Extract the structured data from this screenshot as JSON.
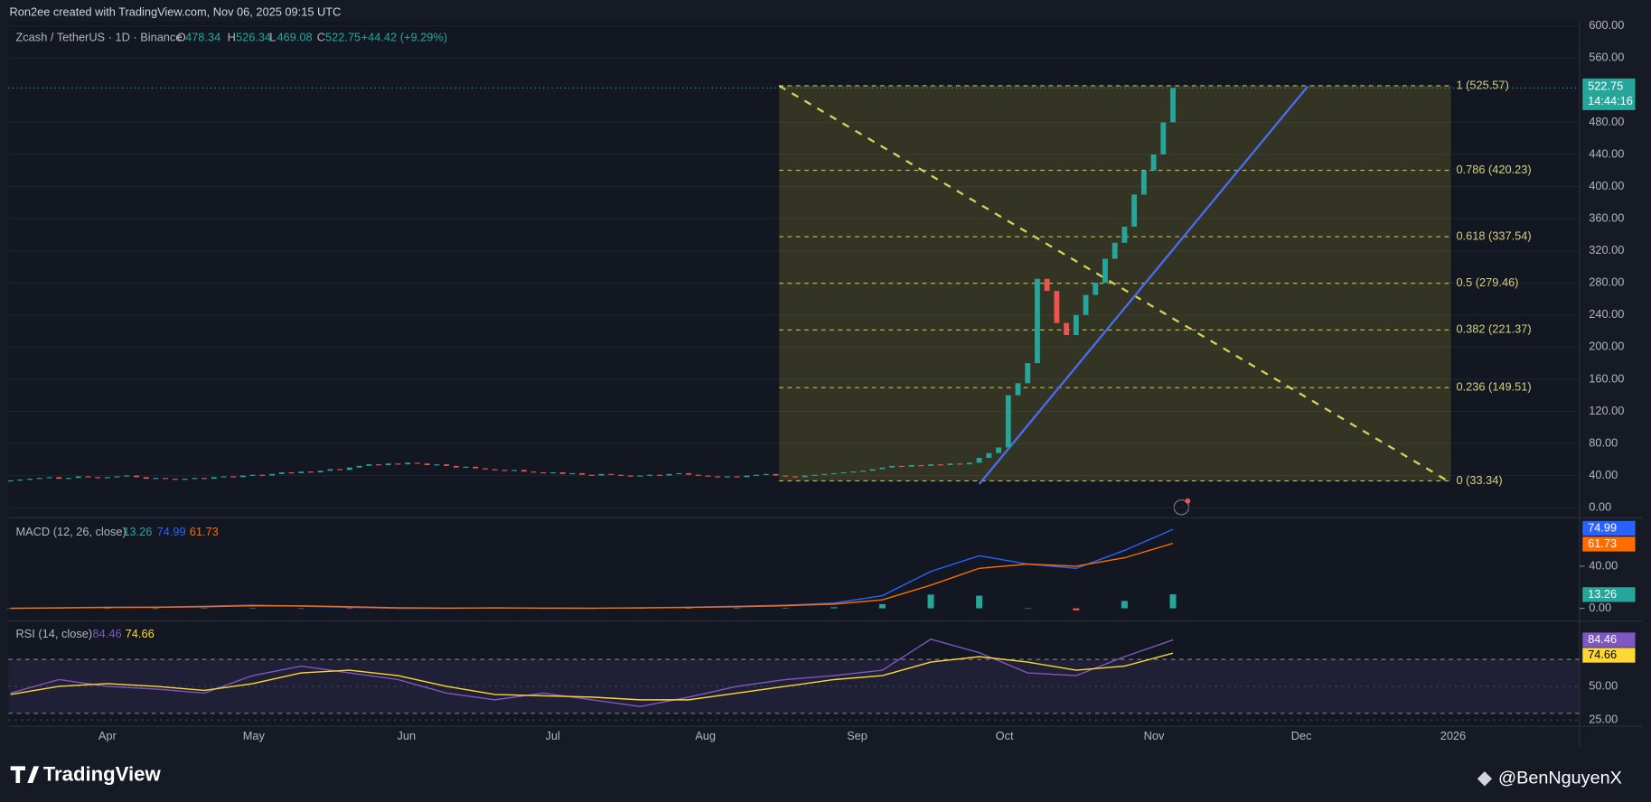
{
  "header": {
    "credit": "Ron2ee created with TradingView.com, Nov 06, 2025 09:15 UTC",
    "symbol": "Zcash / TetherUS · 1D · Binance",
    "open_label": "O",
    "open": 478.34,
    "high_label": "H",
    "high": 526.34,
    "low_label": "L",
    "low": 469.08,
    "close_label": "C",
    "close": 522.75,
    "change": "+44.42 (+9.29%)"
  },
  "price_pane": {
    "ylim": [
      -10,
      610
    ],
    "yticks": [
      {
        "value": 0,
        "label": "0.00"
      },
      {
        "value": 40,
        "label": "40.00"
      },
      {
        "value": 80,
        "label": "80.00"
      },
      {
        "value": 120,
        "label": "120.00"
      },
      {
        "value": 160,
        "label": "160.00"
      },
      {
        "value": 200,
        "label": "200.00"
      },
      {
        "value": 240,
        "label": "240.00"
      },
      {
        "value": 280,
        "label": "280.00"
      },
      {
        "value": 320,
        "label": "320.00"
      },
      {
        "value": 360,
        "label": "360.00"
      },
      {
        "value": 400,
        "label": "400.00"
      },
      {
        "value": 440,
        "label": "440.00"
      },
      {
        "value": 480,
        "label": "480.00"
      },
      {
        "value": 560,
        "label": "560.00"
      },
      {
        "value": 600,
        "label": "600.00"
      }
    ],
    "up_color": "#26a69a",
    "down_color": "#ef5350",
    "closes": [
      34,
      35,
      36,
      37,
      38,
      36,
      37,
      39,
      38,
      37,
      38,
      39,
      40,
      38,
      36,
      37,
      36,
      35,
      36,
      37,
      36,
      38,
      39,
      38,
      40,
      41,
      40,
      42,
      44,
      43,
      45,
      44,
      46,
      48,
      47,
      50,
      52,
      54,
      53,
      55,
      54,
      56,
      55,
      53,
      54,
      52,
      50,
      51,
      49,
      48,
      47,
      46,
      47,
      45,
      44,
      43,
      44,
      42,
      43,
      41,
      40,
      42,
      41,
      40,
      39,
      40,
      41,
      40,
      42,
      43,
      41,
      40,
      39,
      38,
      39,
      38,
      40,
      41,
      42,
      40,
      39,
      38,
      40,
      41,
      42,
      43,
      44,
      45,
      46,
      48,
      50,
      52,
      51,
      53,
      52,
      54,
      53,
      55,
      54,
      56,
      62,
      68,
      75,
      140,
      155,
      180,
      285,
      270,
      230,
      215,
      240,
      265,
      280,
      310,
      330,
      350,
      390,
      420,
      440,
      480,
      522.75
    ],
    "last_price": 522.75,
    "countdown": "14:44:16",
    "fib_levels": [
      {
        "value": 525.57,
        "label": "1 (525.57)"
      },
      {
        "value": 420.23,
        "label": "0.786 (420.23)"
      },
      {
        "value": 337.54,
        "label": "0.618 (337.54)"
      },
      {
        "value": 279.46,
        "label": "0.5 (279.46)"
      },
      {
        "value": 221.37,
        "label": "0.382 (221.37)"
      },
      {
        "value": 149.51,
        "label": "0.236 (149.51)"
      },
      {
        "value": 33.34,
        "label": "0 (33.34)"
      }
    ]
  },
  "macd_pane": {
    "legend": "MACD (12, 26, close)",
    "ylim": [
      -12,
      83
    ],
    "yticks": [
      {
        "value": 40,
        "label": "40.00"
      },
      {
        "value": 0,
        "label": "0.00"
      }
    ],
    "macd_color": "#2962ff",
    "signal_color": "#ff6d00",
    "histogram": [
      0,
      0.2,
      0.2,
      0,
      0.5,
      0.5,
      -0.3,
      -0.5,
      -0.5,
      -0.2,
      0.2,
      -0.2,
      -0.1,
      0.2,
      0.2,
      0.5,
      0.5,
      1,
      4,
      13,
      12,
      0,
      -2,
      7,
      13.26
    ],
    "macd": [
      0,
      0.5,
      1,
      1,
      2,
      3,
      2,
      1,
      0,
      0,
      0.5,
      0,
      0,
      0.5,
      1,
      2,
      3,
      5,
      12,
      35,
      50,
      42,
      38,
      55,
      74.99
    ],
    "signal": [
      0,
      0.3,
      0.8,
      1,
      1.5,
      2.5,
      2.3,
      1.5,
      0.5,
      0.2,
      0.3,
      0.2,
      0.1,
      0.3,
      0.8,
      1.5,
      2.5,
      4,
      8,
      22,
      38,
      42,
      40,
      48,
      61.73
    ]
  },
  "rsi_pane": {
    "legend": "RSI (14, close)",
    "ylim": [
      22,
      97
    ],
    "band": [
      30,
      70
    ],
    "yticks": [
      {
        "value": 50,
        "label": "50.00"
      },
      {
        "value": 25,
        "label": "25.00"
      }
    ],
    "rsi_color": "#7e57c2",
    "ma_color": "#fdd835",
    "rsi": [
      45,
      55,
      50,
      48,
      45,
      58,
      65,
      60,
      55,
      45,
      40,
      45,
      40,
      35,
      42,
      50,
      55,
      58,
      62,
      85,
      75,
      60,
      58,
      72,
      84.46
    ],
    "rsi_ma": [
      44,
      50,
      52,
      50,
      47,
      52,
      60,
      62,
      58,
      50,
      44,
      43,
      42,
      40,
      40,
      45,
      50,
      55,
      58,
      68,
      72,
      68,
      62,
      65,
      74.66
    ]
  },
  "time_axis": {
    "labels": [
      "Apr",
      "May",
      "Jun",
      "Jul",
      "Aug",
      "Sep",
      "Oct",
      "Nov",
      "Dec",
      "2026"
    ]
  },
  "footer": {
    "brand": "TradingView",
    "handle": "@BenNguyenX"
  }
}
